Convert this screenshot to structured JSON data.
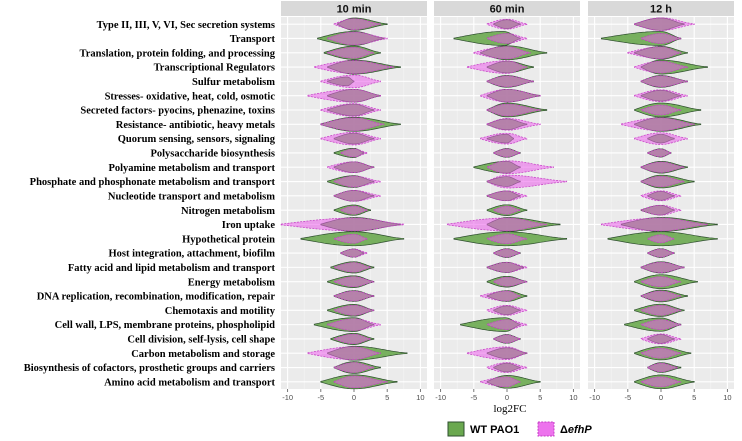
{
  "chart_data": {
    "type": "violin",
    "xlabel": "log2FC",
    "xlim": [
      -11,
      11
    ],
    "xticks": [
      -10,
      -5,
      0,
      5,
      10
    ],
    "panels": [
      "10 min",
      "60 min",
      "12 h"
    ],
    "categories": [
      "Type II, III, V, VI, Sec secretion systems",
      "Transport",
      "Translation, protein folding, and processing",
      "Transcriptional Regulators",
      "Sulfur metabolism",
      "Stresses- oxidative, heat, cold, osmotic",
      "Secreted factors- pyocins, phenazine, toxins",
      "Resistance- antibiotic, heavy metals",
      "Quorum sensing, sensors, signaling",
      "Polysaccharide biosynthesis",
      "Polyamine metabolism and transport",
      "Phosphate and phosphonate metabolism and transport",
      "Nucleotide transport and metabolism",
      "Nitrogen metabolism",
      "Iron uptake",
      "Hypothetical protein",
      "Host integration, attachment, biofilm",
      "Fatty acid and lipid metabolism and transport",
      "Energy metabolism",
      "DNA replication, recombination, modification, repair",
      "Chemotaxis and motility",
      "Cell wall, LPS, membrane proteins, phospholipid",
      "Cell division, self-lysis, cell shape",
      "Carbon metabolism and storage",
      "Biosynthesis of cofactors, prosthetic groups and carriers",
      "Amino acid metabolism and transport"
    ],
    "series": [
      {
        "name": "WT PAO1",
        "color": "#6aa84f",
        "ranges": [
          [
            [
              -2.5,
              5
            ],
            [
              -5.5,
              4.5
            ],
            [
              -4.5,
              4
            ],
            [
              -4,
              7
            ],
            [
              -4,
              0
            ],
            [
              -4,
              4
            ],
            [
              -4,
              3
            ],
            [
              -5,
              7
            ],
            [
              -3,
              3
            ],
            [
              -3,
              1.5
            ],
            [
              -3,
              3
            ],
            [
              -4,
              3
            ],
            [
              -3,
              3
            ],
            [
              -3,
              2.5
            ],
            [
              -5,
              7
            ],
            [
              -8,
              7.5
            ],
            [
              -2,
              1.5
            ],
            [
              -3.5,
              3
            ],
            [
              -4,
              3
            ],
            [
              -3,
              3
            ],
            [
              -4,
              3
            ],
            [
              -6,
              3
            ],
            [
              -3.5,
              3
            ],
            [
              -4,
              8
            ],
            [
              -3,
              4
            ],
            [
              -5,
              6.5
            ]
          ],
          [
            [
              -2,
              2
            ],
            [
              -8,
              2
            ],
            [
              -4,
              6
            ],
            [
              -3,
              4
            ],
            [
              -3,
              4
            ],
            [
              -3,
              5
            ],
            [
              -3,
              6
            ],
            [
              -3,
              3
            ],
            [
              -3,
              1
            ],
            [
              -2,
              2
            ],
            [
              -5,
              2
            ],
            [
              -3,
              2
            ],
            [
              -3,
              2
            ],
            [
              -3,
              3
            ],
            [
              -3,
              8
            ],
            [
              -8,
              9
            ],
            [
              -2,
              2
            ],
            [
              -3,
              2.5
            ],
            [
              -3,
              3
            ],
            [
              -3,
              3
            ],
            [
              -2,
              2
            ],
            [
              -7,
              2
            ],
            [
              -2,
              2
            ],
            [
              -3,
              3
            ],
            [
              -2,
              2
            ],
            [
              -3,
              5
            ]
          ],
          [
            [
              -4,
              3.5
            ],
            [
              -9,
              3
            ],
            [
              -4,
              4
            ],
            [
              -3,
              7
            ],
            [
              -3,
              4
            ],
            [
              -3,
              3
            ],
            [
              -4,
              6
            ],
            [
              -4,
              6
            ],
            [
              -2,
              2
            ],
            [
              -2,
              1.5
            ],
            [
              -3,
              4
            ],
            [
              -3,
              5
            ],
            [
              -2,
              2
            ],
            [
              -3,
              2
            ],
            [
              -6,
              8.5
            ],
            [
              -8,
              8.5
            ],
            [
              -2,
              2
            ],
            [
              -3,
              3.5
            ],
            [
              -4,
              5.5
            ],
            [
              -3,
              4
            ],
            [
              -4,
              3.5
            ],
            [
              -5.5,
              3
            ],
            [
              -2,
              2
            ],
            [
              -4,
              4.5
            ],
            [
              -2,
              3
            ],
            [
              -4,
              5
            ]
          ]
        ]
      },
      {
        "name": "ΔefhP",
        "color": "#ea5bea",
        "ranges": [
          [
            [
              -3,
              4
            ],
            [
              -4,
              5
            ],
            [
              -4,
              3
            ],
            [
              -6,
              6
            ],
            [
              -5,
              4
            ],
            [
              -7,
              4
            ],
            [
              -5,
              4
            ],
            [
              -5,
              4.5
            ],
            [
              -5,
              4
            ],
            [
              -2,
              2
            ],
            [
              -4,
              3
            ],
            [
              -3,
              4
            ],
            [
              -3,
              4
            ],
            [
              -2,
              2
            ],
            [
              -11,
              7.5
            ],
            [
              -3,
              2
            ],
            [
              -2,
              2
            ],
            [
              -3,
              2.5
            ],
            [
              -3,
              3
            ],
            [
              -3,
              3
            ],
            [
              -3,
              3
            ],
            [
              -4,
              4
            ],
            [
              -3,
              2.5
            ],
            [
              -7,
              4
            ],
            [
              -3,
              3
            ],
            [
              -3,
              5
            ]
          ],
          [
            [
              -3,
              3
            ],
            [
              -3,
              3
            ],
            [
              -5,
              3.5
            ],
            [
              -6,
              3
            ],
            [
              -3,
              4
            ],
            [
              -4,
              5
            ],
            [
              -3,
              5
            ],
            [
              -3,
              5
            ],
            [
              -4,
              3
            ],
            [
              -2,
              2
            ],
            [
              -3,
              7
            ],
            [
              -3,
              9
            ],
            [
              -3,
              3
            ],
            [
              -2,
              2
            ],
            [
              -9,
              6
            ],
            [
              -3,
              3
            ],
            [
              -2,
              2
            ],
            [
              -3,
              3
            ],
            [
              -2,
              3
            ],
            [
              -4,
              2
            ],
            [
              -3,
              3
            ],
            [
              -3,
              3
            ],
            [
              -2,
              2
            ],
            [
              -6,
              3
            ],
            [
              -3,
              3
            ],
            [
              -4,
              2
            ]
          ],
          [
            [
              -4,
              5
            ],
            [
              -3,
              3
            ],
            [
              -5,
              3
            ],
            [
              -4,
              4
            ],
            [
              -3,
              4
            ],
            [
              -4,
              4
            ],
            [
              -3,
              3
            ],
            [
              -6,
              5
            ],
            [
              -4,
              4
            ],
            [
              -2,
              1.5
            ],
            [
              -3,
              3.5
            ],
            [
              -3,
              3.5
            ],
            [
              -3,
              3
            ],
            [
              -3,
              3
            ],
            [
              -9,
              7
            ],
            [
              -2,
              2
            ],
            [
              -2,
              2
            ],
            [
              -3,
              3.5
            ],
            [
              -3,
              3
            ],
            [
              -3,
              3
            ],
            [
              -3,
              3
            ],
            [
              -3,
              3
            ],
            [
              -3,
              3
            ],
            [
              -3,
              3
            ],
            [
              -2,
              2.5
            ],
            [
              -3,
              3
            ]
          ]
        ]
      }
    ],
    "legend": {
      "position": "bottom-right",
      "labels": [
        "WT PAO1",
        "ΔefhP"
      ]
    }
  }
}
